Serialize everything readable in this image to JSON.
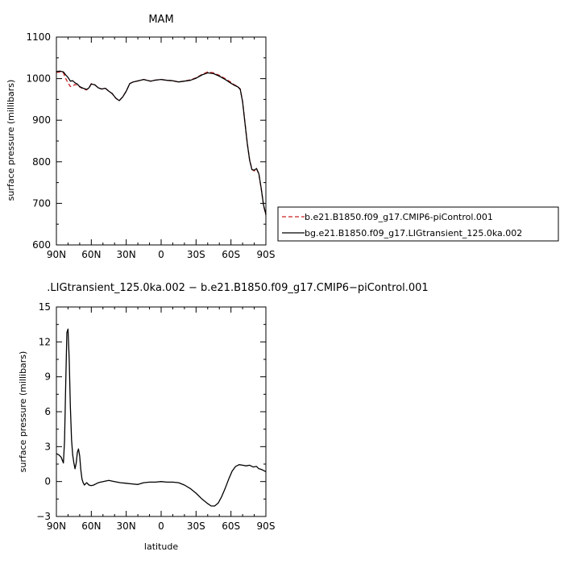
{
  "chart_data": [
    {
      "type": "line",
      "title": "MAM",
      "xlabel": "",
      "ylabel": "surface pressure (millibars)",
      "xlim": [
        90,
        -90
      ],
      "ylim": [
        600,
        1100
      ],
      "xticks": [
        90,
        60,
        30,
        0,
        -30,
        -60,
        -90
      ],
      "xtick_labels": [
        "90N",
        "60N",
        "30N",
        "0",
        "30S",
        "60S",
        "90S"
      ],
      "yticks": [
        600,
        700,
        800,
        900,
        1000,
        1100
      ],
      "ytick_labels": [
        "600",
        "700",
        "800",
        "900",
        "1000",
        "1100"
      ],
      "grid": false,
      "legend_position": "right",
      "series": [
        {
          "name": "b.e21.B1850.f09_g17.CMIP6-piControl.001",
          "color": "#cc2222",
          "dash": "dashed",
          "x": [
            90,
            87,
            84,
            82,
            80,
            78,
            76,
            74,
            72,
            70,
            68,
            66,
            64,
            62,
            60,
            57,
            54,
            51,
            48,
            45,
            42,
            39,
            36,
            33,
            30,
            27,
            24,
            21,
            18,
            15,
            12,
            9,
            6,
            3,
            0,
            -5,
            -10,
            -15,
            -20,
            -25,
            -30,
            -35,
            -40,
            -45,
            -50,
            -55,
            -60,
            -63,
            -66,
            -68,
            -70,
            -72,
            -74,
            -76,
            -78,
            -80,
            -82,
            -84,
            -86,
            -88,
            -90
          ],
          "y": [
            1015,
            1016,
            1014,
            1000,
            990,
            981,
            982,
            986,
            984,
            980,
            977,
            974,
            973,
            978,
            988,
            985,
            978,
            975,
            977,
            970,
            964,
            953,
            947,
            956,
            970,
            988,
            992,
            994,
            996,
            998,
            996,
            994,
            996,
            997,
            998,
            996,
            995,
            992,
            994,
            997,
            1002,
            1010,
            1016,
            1014,
            1008,
            1000,
            991,
            985,
            981,
            975,
            945,
            895,
            845,
            805,
            782,
            778,
            783,
            770,
            735,
            695,
            672
          ]
        },
        {
          "name": "bg.e21.B1850.f09_g17.LIGtransient_125.0ka.002",
          "color": "#000000",
          "dash": "solid",
          "x": [
            90,
            87,
            84,
            82,
            80,
            78,
            76,
            74,
            72,
            70,
            68,
            66,
            64,
            62,
            60,
            57,
            54,
            51,
            48,
            45,
            42,
            39,
            36,
            33,
            30,
            27,
            24,
            21,
            18,
            15,
            12,
            9,
            6,
            3,
            0,
            -5,
            -10,
            -15,
            -20,
            -25,
            -30,
            -35,
            -40,
            -45,
            -50,
            -55,
            -60,
            -63,
            -66,
            -68,
            -70,
            -72,
            -74,
            -76,
            -78,
            -80,
            -82,
            -84,
            -86,
            -88,
            -90
          ],
          "y": [
            1017,
            1018,
            1016,
            1009,
            1003,
            994,
            995,
            990,
            987,
            981,
            978,
            976,
            974,
            978,
            987,
            985,
            978,
            975,
            977,
            970,
            964,
            953,
            947,
            956,
            970,
            988,
            992,
            994,
            996,
            998,
            996,
            994,
            996,
            997,
            998,
            996,
            995,
            992,
            994,
            996,
            1001,
            1009,
            1014,
            1012,
            1006,
            998,
            989,
            984,
            980,
            974,
            944,
            894,
            844,
            804,
            781,
            780,
            784,
            771,
            736,
            696,
            673
          ]
        }
      ]
    },
    {
      "type": "line",
      "title": ".LIGtransient_125.0ka.002 − b.e21.B1850.f09_g17.CMIP6−piControl.001",
      "xlabel": "latitude",
      "ylabel": "surface pressure (millibars)",
      "xlim": [
        90,
        -90
      ],
      "ylim": [
        -3,
        15
      ],
      "xticks": [
        90,
        60,
        30,
        0,
        -30,
        -60,
        -90
      ],
      "xtick_labels": [
        "90N",
        "60N",
        "30N",
        "0",
        "30S",
        "60S",
        "90S"
      ],
      "yticks": [
        -3,
        0,
        3,
        6,
        9,
        12,
        15
      ],
      "ytick_labels": [
        "−3",
        "0",
        "3",
        "6",
        "9",
        "12",
        "15"
      ],
      "grid": false,
      "series": [
        {
          "name": "",
          "color": "#000000",
          "dash": "solid",
          "x": [
            90,
            88,
            86,
            84,
            83,
            82,
            81,
            80,
            79,
            78,
            77,
            76,
            75,
            74,
            73,
            72,
            71,
            70,
            69,
            68,
            67,
            66,
            65,
            64,
            62,
            60,
            58,
            56,
            54,
            52,
            50,
            45,
            40,
            35,
            30,
            25,
            20,
            15,
            10,
            5,
            0,
            -5,
            -10,
            -15,
            -20,
            -25,
            -30,
            -35,
            -40,
            -43,
            -46,
            -49,
            -52,
            -55,
            -58,
            -61,
            -64,
            -67,
            -70,
            -73,
            -76,
            -79,
            -82,
            -84,
            -86,
            -88,
            -90
          ],
          "y": [
            2.4,
            2.3,
            2.1,
            1.6,
            3.5,
            8.5,
            12.8,
            13.1,
            10.5,
            6.5,
            3.6,
            2.3,
            1.6,
            1.1,
            1.6,
            2.5,
            2.8,
            2.2,
            1.0,
            0.2,
            -0.1,
            -0.3,
            -0.2,
            -0.1,
            -0.3,
            -0.35,
            -0.3,
            -0.2,
            -0.1,
            -0.05,
            0.0,
            0.1,
            0.0,
            -0.1,
            -0.15,
            -0.2,
            -0.25,
            -0.1,
            -0.05,
            -0.05,
            0.0,
            -0.05,
            -0.05,
            -0.1,
            -0.3,
            -0.6,
            -1.0,
            -1.5,
            -1.9,
            -2.1,
            -2.1,
            -1.85,
            -1.3,
            -0.6,
            0.2,
            0.9,
            1.3,
            1.45,
            1.4,
            1.35,
            1.4,
            1.25,
            1.3,
            1.1,
            1.05,
            0.95,
            0.85
          ]
        }
      ]
    }
  ]
}
